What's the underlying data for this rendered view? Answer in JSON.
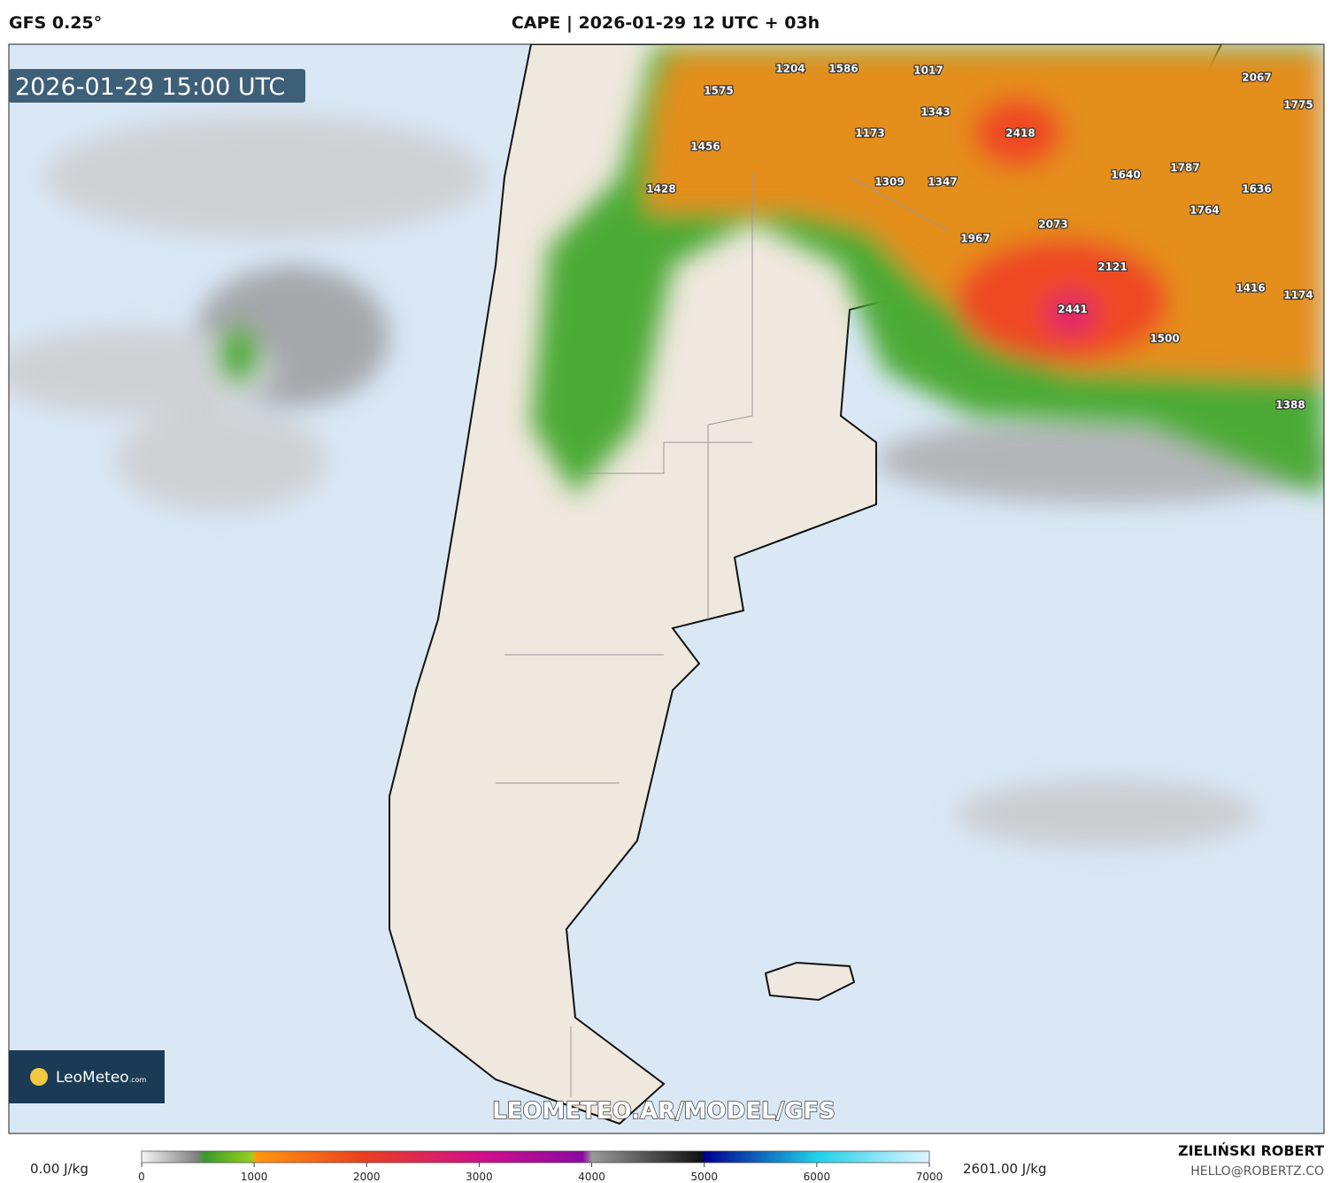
{
  "header": {
    "model": "GFS 0.25°",
    "title": "CAPE | 2026-01-29 12 UTC + 03h"
  },
  "map": {
    "valid_time": "2026-01-29 15:00 UTC",
    "watermark": "LEOMETEO.AR/MODEL/GFS",
    "logo": {
      "name": "LeoMeteo",
      "suffix": ".com"
    },
    "cape_labels": [
      1204,
      1586,
      1017,
      2067,
      1575,
      1775,
      1343,
      2418,
      1173,
      1456,
      1309,
      1347,
      1640,
      1787,
      1636,
      1428,
      1764,
      2073,
      1967,
      2121,
      1416,
      1174,
      2441,
      1500,
      1388
    ]
  },
  "colorbar": {
    "min_label": "0.00 J/kg",
    "max_label": "2601.00 J/kg",
    "lim": [
      0,
      7000
    ],
    "ticks": [
      0,
      1000,
      2000,
      3000,
      4000,
      5000,
      6000,
      7000
    ]
  },
  "footer": {
    "author": "ZIELIŃSKI ROBERT",
    "contact": "HELLO@ROBERTZ.CO"
  }
}
